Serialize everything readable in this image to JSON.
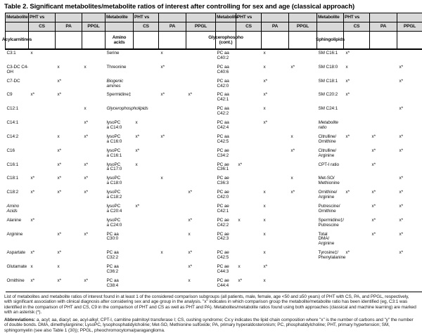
{
  "title": "Table 2. Significant metabolites/metabolite ratios of interest after controlling for sex and age (classical approach)",
  "table": {
    "header": {
      "metabolite_label": "Metabolite",
      "pht_vs_label": "PHT vs",
      "subcols": [
        "CS",
        "PA",
        "PPGL"
      ],
      "groups": [
        {
          "category": "Acylcarnitines"
        },
        {
          "category": "Amino\nacids"
        },
        {
          "category": "Glycerophospho\n(cont.)"
        },
        {
          "category": "Sphingolipids"
        }
      ]
    },
    "rows": [
      [
        {
          "name": "C3:1",
          "marks": [
            "x",
            "",
            ""
          ]
        },
        {
          "name": "Serine",
          "marks": [
            "",
            "x",
            ""
          ]
        },
        {
          "name": "PC aa\nC40:2",
          "marks": [
            "",
            "x",
            ""
          ]
        },
        {
          "name": "SM C16:1",
          "marks": [
            "x*",
            "",
            ""
          ]
        }
      ],
      [
        {
          "name": "C3-DC C4-\nOH",
          "marks": [
            "",
            "x",
            "x"
          ]
        },
        {
          "name": "Threonine",
          "marks": [
            "",
            "x*",
            ""
          ]
        },
        {
          "name": "PC aa\nC40:6",
          "marks": [
            "",
            "x",
            "x*"
          ]
        },
        {
          "name": "SM C18:0",
          "marks": [
            "x",
            "",
            "x*"
          ]
        }
      ],
      [
        {
          "name": "C7-DC",
          "marks": [
            "",
            "x*",
            ""
          ]
        },
        {
          "category": "Biogenic\namines"
        },
        {
          "name": "PC aa\nC42:0",
          "marks": [
            "",
            "x*",
            ""
          ]
        },
        {
          "name": "SM C18:1",
          "marks": [
            "x*",
            "",
            "x*"
          ]
        }
      ],
      [
        {
          "name": "C9",
          "marks": [
            "x*",
            "x*",
            ""
          ]
        },
        {
          "name": "Spermidine‡",
          "marks": [
            "",
            "x*",
            "x*"
          ]
        },
        {
          "name": "PC aa\nC42:1",
          "marks": [
            "",
            "x*",
            ""
          ]
        },
        {
          "name": "SM C20:2",
          "marks": [
            "x*",
            "",
            ""
          ]
        }
      ],
      [
        {
          "name": "C12:1",
          "marks": [
            "",
            "",
            "x"
          ]
        },
        {
          "category": "Glycerophospholipids"
        },
        {
          "name": "PC aa\nC42:2",
          "marks": [
            "",
            "x",
            ""
          ]
        },
        {
          "name": "SM C24:1",
          "marks": [
            "",
            "",
            "x*"
          ]
        }
      ],
      [
        {
          "name": "C14:1",
          "marks": [
            "",
            "",
            "x*"
          ]
        },
        {
          "name": "lysoPC\na C14:0",
          "marks": [
            "x",
            "",
            ""
          ]
        },
        {
          "name": "PC aa\nC42:4",
          "marks": [
            "",
            "x*",
            ""
          ]
        },
        {
          "category": "Metabolite\nratio"
        }
      ],
      [
        {
          "name": "C14:2",
          "marks": [
            "",
            "x",
            "x*"
          ]
        },
        {
          "name": "lysoPC\na C16:0",
          "marks": [
            "x*",
            "x*",
            ""
          ]
        },
        {
          "name": "PC aa\nC42:5",
          "marks": [
            "",
            "",
            "x"
          ]
        },
        {
          "name": "Citrulline/\nOrnithine",
          "marks": [
            "x*",
            "x*",
            "x*"
          ]
        }
      ],
      [
        {
          "name": "C16",
          "marks": [
            "",
            "x*",
            ""
          ]
        },
        {
          "name": "lysoPC\na C16:1",
          "marks": [
            "x*",
            "",
            ""
          ]
        },
        {
          "name": "PC ae\nC34:2",
          "marks": [
            "",
            "",
            "x*"
          ]
        },
        {
          "name": "Citrulline/\nArginine",
          "marks": [
            "",
            "x*",
            "x*"
          ]
        }
      ],
      [
        {
          "name": "C16:1",
          "marks": [
            "",
            "x*",
            "x*"
          ]
        },
        {
          "name": "lysoPC\na C17:0",
          "marks": [
            "x",
            "",
            ""
          ]
        },
        {
          "name": "PC ae\nC36:1",
          "marks": [
            "x*",
            "",
            ""
          ]
        },
        {
          "name": "CPT-I ratio",
          "marks": [
            "",
            "x*",
            ""
          ]
        }
      ],
      [
        {
          "name": "C18:1",
          "marks": [
            "x*",
            "x*",
            "x*"
          ]
        },
        {
          "name": "lysoPC\na C18:0",
          "marks": [
            "",
            "x",
            ""
          ]
        },
        {
          "name": "PC ae\nC36:3",
          "marks": [
            "",
            "",
            "x"
          ]
        },
        {
          "name": "Met-SO/\nMethionine",
          "marks": [
            "",
            "",
            "x*"
          ]
        }
      ],
      [
        {
          "name": "C18:2",
          "marks": [
            "x*",
            "x*",
            "x*"
          ]
        },
        {
          "name": "lysoPC\na C18:2",
          "marks": [
            "",
            "",
            "x*"
          ]
        },
        {
          "name": "PC ae\nC42:0",
          "marks": [
            "",
            "x",
            "x*"
          ]
        },
        {
          "name": "Ornithine/\nArginine",
          "marks": [
            "x*",
            "x*",
            "x*"
          ]
        }
      ],
      [
        {
          "category": "Amino\nAcids"
        },
        {
          "name": "lysoPC\na C20:4",
          "marks": [
            "x*",
            "",
            ""
          ]
        },
        {
          "name": "PC ae\nC42:1",
          "marks": [
            "",
            "x",
            ""
          ]
        },
        {
          "name": "Putrescine/\nOrnithine",
          "marks": [
            "",
            "x*",
            "x*"
          ]
        }
      ],
      [
        {
          "name": "Alanine",
          "marks": [
            "x*",
            "",
            ""
          ]
        },
        {
          "name": "lysoPC\na C24:0",
          "marks": [
            "",
            "",
            "x*"
          ]
        },
        {
          "name": "PC ae\nC42:2",
          "marks": [
            "x",
            "x",
            ""
          ]
        },
        {
          "name": "Spermidine‡/\nPutrescine",
          "marks": [
            "",
            "x*",
            "x*"
          ]
        }
      ],
      [
        {
          "name": "Arginine",
          "marks": [
            "",
            "x*",
            "x*"
          ]
        },
        {
          "name": "PC aa\nC30:0",
          "marks": [
            "",
            "",
            "x"
          ]
        },
        {
          "name": "PC ae\nC42:3",
          "marks": [
            "",
            "x",
            ""
          ]
        },
        {
          "name": "Total\nDMA/\nArginine",
          "marks": [
            "",
            "x*",
            "x*"
          ]
        }
      ],
      [
        {
          "name": "Aspartate",
          "marks": [
            "x*",
            "x*",
            ""
          ]
        },
        {
          "name": "PC aa\nC32:2",
          "marks": [
            "",
            "x",
            "x*"
          ]
        },
        {
          "name": "PC ae\nC42:5",
          "marks": [
            "",
            "x",
            ""
          ]
        },
        {
          "name": "Tyrosine‡/\nPhenylalanine",
          "marks": [
            "x*",
            "",
            "x*"
          ]
        }
      ],
      [
        {
          "name": "Glutamate",
          "marks": [
            "x",
            "x",
            ""
          ]
        },
        {
          "name": "PC aa\nC36:2",
          "marks": [
            "",
            "",
            "x*"
          ]
        },
        {
          "name": "PC ae\nC44:3",
          "marks": [
            "x",
            "x*",
            ""
          ]
        },
        {
          "empty": true
        }
      ],
      [
        {
          "name": "Ornithine",
          "marks": [
            "x*",
            "x*",
            "x*"
          ]
        },
        {
          "name": "PC aa\nC38:4",
          "marks": [
            "",
            "",
            "x"
          ]
        },
        {
          "name": "PC ae\nC44:4",
          "marks": [
            "x*",
            "x",
            ""
          ]
        },
        {
          "empty": true
        }
      ]
    ]
  },
  "footnotes": {
    "note": "List of metabolites and metabolite ratios of interest found in at least 1 of the considered comparison subgroups (all patients, male, female, age <50 and ≥50 years) of PHT with CS, PA, and PPGL, respectively, with significant association with clinical diagnosis after considering sex and age group in the analysis. \"x\" indicates in which comparison group the metabolite/metabolite ratio has been identified (eg, C3:1 was identified in the comparison of PHT and CS, C9 in the comparison of PHT and CS as well as PHT and PA). Metabolites/metabolite ratios found using both approaches (classical and machine learning) are marked with an asterisk (*).",
    "abbreviations_label": "Abbreviations:",
    "abbreviations_text": "a, acyl; aa, diacyl; ae, acyl-alkyl; CPT-I, carnitine palmitoyl transferase I; CS, cushing syndrome; Cx:y indicates the lipid chain composition where \"x\" is the number of carbons and \"y\" the number of double bonds. DMA, dimethylarginine; LysoPC, lysophosphatidylcholine; Met-SO, Methionine sulfoxide; PA, primary hyperaldosteronism; PC, phosphatidylcholine; PHT, primary hypertension; SM, sphingomyelin (see also Table 1 (30)); PPGL, pheochromocytoma/paraganglioma."
  }
}
